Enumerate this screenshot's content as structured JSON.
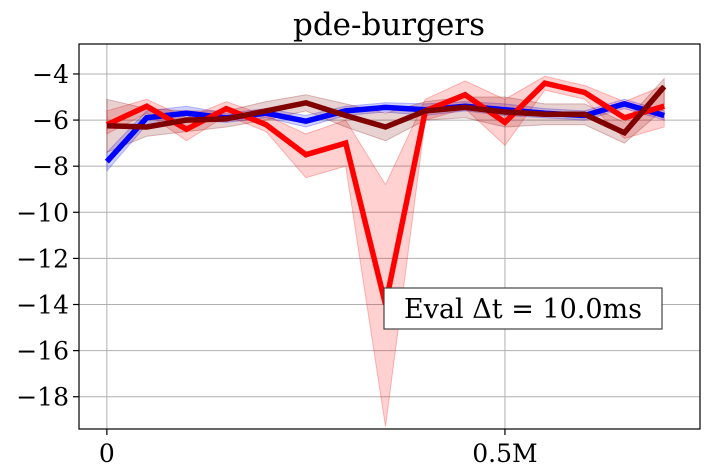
{
  "chart_data": {
    "type": "line",
    "title": "pde-burgers",
    "xlabel": "",
    "ylabel": "",
    "xlim": [
      -0.035,
      0.745
    ],
    "ylim": [
      -19.4,
      -2.7
    ],
    "grid": true,
    "legend": "none",
    "x_ticks": [
      {
        "value": 0,
        "label": "0"
      },
      {
        "value": 0.5,
        "label": "0.5M"
      }
    ],
    "y_ticks": [
      {
        "value": -4,
        "label": "−4"
      },
      {
        "value": -6,
        "label": "−6"
      },
      {
        "value": -8,
        "label": "−8"
      },
      {
        "value": -10,
        "label": "−10"
      },
      {
        "value": -12,
        "label": "−12"
      },
      {
        "value": -14,
        "label": "−14"
      },
      {
        "value": -16,
        "label": "−16"
      },
      {
        "value": -18,
        "label": "−18"
      }
    ],
    "annotation": "Eval Δt = 10.0ms",
    "x": [
      0,
      0.05,
      0.1,
      0.15,
      0.2,
      0.25,
      0.3,
      0.35,
      0.4,
      0.45,
      0.5,
      0.55,
      0.6,
      0.65,
      0.7
    ],
    "series": [
      {
        "color": "#0000ff",
        "values": [
          -7.8,
          -5.9,
          -5.7,
          -5.9,
          -5.7,
          -6.05,
          -5.6,
          -5.45,
          -5.55,
          -5.4,
          -5.55,
          -5.7,
          -5.8,
          -5.3,
          -5.8
        ],
        "lower": [
          -8.2,
          -6.2,
          -6.0,
          -6.1,
          -5.9,
          -6.3,
          -5.8,
          -5.65,
          -5.8,
          -5.6,
          -5.8,
          -5.9,
          -6.0,
          -5.5,
          -6.0
        ],
        "upper": [
          -7.4,
          -5.6,
          -5.4,
          -5.7,
          -5.5,
          -5.8,
          -5.4,
          -5.25,
          -5.3,
          -5.2,
          -5.3,
          -5.5,
          -5.6,
          -5.1,
          -5.6
        ]
      },
      {
        "color": "#ff0000",
        "values": [
          -6.2,
          -5.4,
          -6.4,
          -5.5,
          -6.2,
          -7.5,
          -7.0,
          -14.0,
          -5.6,
          -4.9,
          -6.1,
          -4.4,
          -4.8,
          -5.9,
          -5.4
        ],
        "lower": [
          -6.6,
          -5.7,
          -6.9,
          -5.8,
          -6.5,
          -8.5,
          -8.0,
          -19.3,
          -6.0,
          -5.5,
          -7.1,
          -4.7,
          -5.1,
          -6.8,
          -6.3
        ],
        "upper": [
          -5.6,
          -5.1,
          -5.9,
          -5.2,
          -5.8,
          -6.6,
          -6.0,
          -8.8,
          -5.1,
          -4.3,
          -5.1,
          -4.1,
          -4.5,
          -5.2,
          -4.5
        ]
      },
      {
        "color": "#800000",
        "values": [
          -6.25,
          -6.3,
          -6.0,
          -5.95,
          -5.6,
          -5.25,
          -5.8,
          -6.3,
          -5.6,
          -5.45,
          -5.65,
          -5.75,
          -5.75,
          -6.55,
          -4.55
        ],
        "lower": [
          -7.4,
          -6.7,
          -6.5,
          -6.3,
          -6.0,
          -5.6,
          -6.3,
          -6.9,
          -6.0,
          -5.9,
          -6.3,
          -6.2,
          -6.2,
          -7.0,
          -5.5
        ],
        "upper": [
          -5.1,
          -5.5,
          -5.6,
          -5.6,
          -5.2,
          -4.9,
          -5.3,
          -5.7,
          -5.2,
          -5.0,
          -5.0,
          -5.3,
          -5.3,
          -6.1,
          -4.2
        ]
      }
    ]
  }
}
